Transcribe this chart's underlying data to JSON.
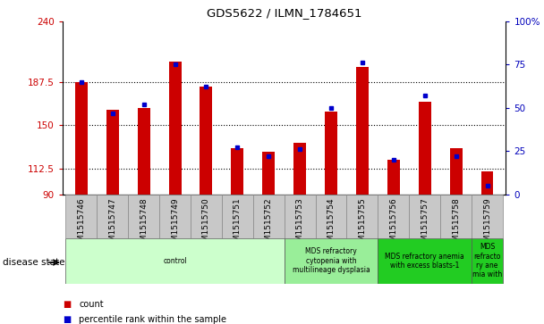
{
  "title": "GDS5622 / ILMN_1784651",
  "samples": [
    "GSM1515746",
    "GSM1515747",
    "GSM1515748",
    "GSM1515749",
    "GSM1515750",
    "GSM1515751",
    "GSM1515752",
    "GSM1515753",
    "GSM1515754",
    "GSM1515755",
    "GSM1515756",
    "GSM1515757",
    "GSM1515758",
    "GSM1515759"
  ],
  "counts": [
    187,
    163,
    165,
    205,
    183,
    130,
    127,
    135,
    162,
    200,
    120,
    170,
    130,
    110
  ],
  "percentile_ranks": [
    65,
    47,
    52,
    75,
    62,
    27,
    22,
    26,
    50,
    76,
    20,
    57,
    22,
    5
  ],
  "ymin": 90,
  "ymax": 240,
  "yticks": [
    90,
    112.5,
    150,
    187.5,
    240
  ],
  "ytick_labels": [
    "90",
    "112.5",
    "150",
    "187.5",
    "240"
  ],
  "right_yticks": [
    0,
    25,
    50,
    75,
    100
  ],
  "right_ytick_labels": [
    "0",
    "25",
    "50",
    "75",
    "100%"
  ],
  "bar_color": "#cc0000",
  "dot_color": "#0000cc",
  "bg_color": "#ffffff",
  "tick_label_color_left": "#cc0000",
  "tick_label_color_right": "#0000bb",
  "disease_groups": [
    {
      "label": "control",
      "start": 0,
      "end": 7,
      "color": "#ccffcc"
    },
    {
      "label": "MDS refractory\ncytopenia with\nmultilineage dysplasia",
      "start": 7,
      "end": 10,
      "color": "#99ee99"
    },
    {
      "label": "MDS refractory anemia\nwith excess blasts-1",
      "start": 10,
      "end": 13,
      "color": "#22cc22"
    },
    {
      "label": "MDS\nrefracto\nry ane\nmia with",
      "start": 13,
      "end": 14,
      "color": "#22cc22"
    }
  ],
  "legend_count_label": "count",
  "legend_pct_label": "percentile rank within the sample",
  "xlabel_left": "disease state",
  "bar_width": 0.4,
  "xticklabel_bg": "#c8c8c8"
}
